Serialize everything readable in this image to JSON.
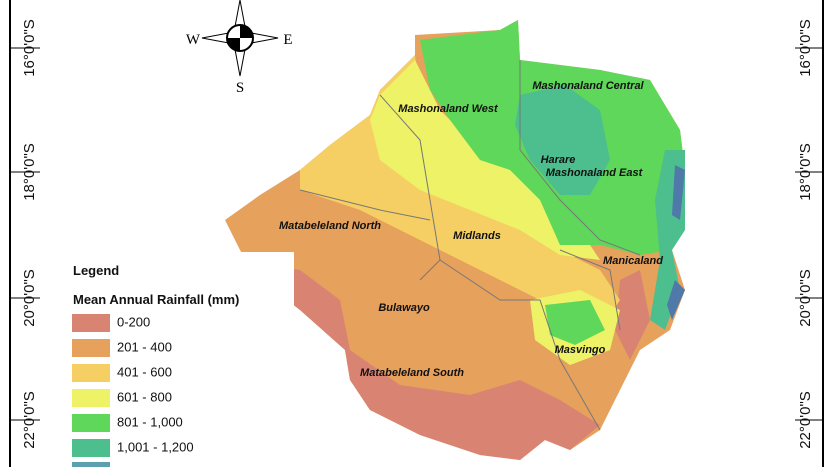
{
  "compass": {
    "west": "W",
    "east": "E",
    "south": "S"
  },
  "latitude_labels": {
    "left": [
      "16°0'0\"S",
      "18°0'0\"S",
      "20°0'0\"S",
      "22°0'0\"S"
    ],
    "right": [
      "16°0'0\"S",
      "18°0'0\"S",
      "20°0'0\"S",
      "22°0'0\"S"
    ]
  },
  "regions": [
    "Mashonaland West",
    "Mashonaland Central",
    "Harare",
    "Mashonaland East",
    "Matabeleland North",
    "Midlands",
    "Manicaland",
    "Bulawayo",
    "Masvingo",
    "Matabeleland South"
  ],
  "legend": {
    "title": "Legend",
    "subtitle": "Mean Annual Rainfall (mm)",
    "items": [
      {
        "label": "0-200",
        "color": "#d98473"
      },
      {
        "label": "201 - 400",
        "color": "#e6a15c"
      },
      {
        "label": "401 - 600",
        "color": "#f5cf63"
      },
      {
        "label": "601 - 800",
        "color": "#eef266"
      },
      {
        "label": "801 - 1,000",
        "color": "#5fd75a"
      },
      {
        "label": "1,001 - 1,200",
        "color": "#4dbf8f"
      }
    ]
  }
}
